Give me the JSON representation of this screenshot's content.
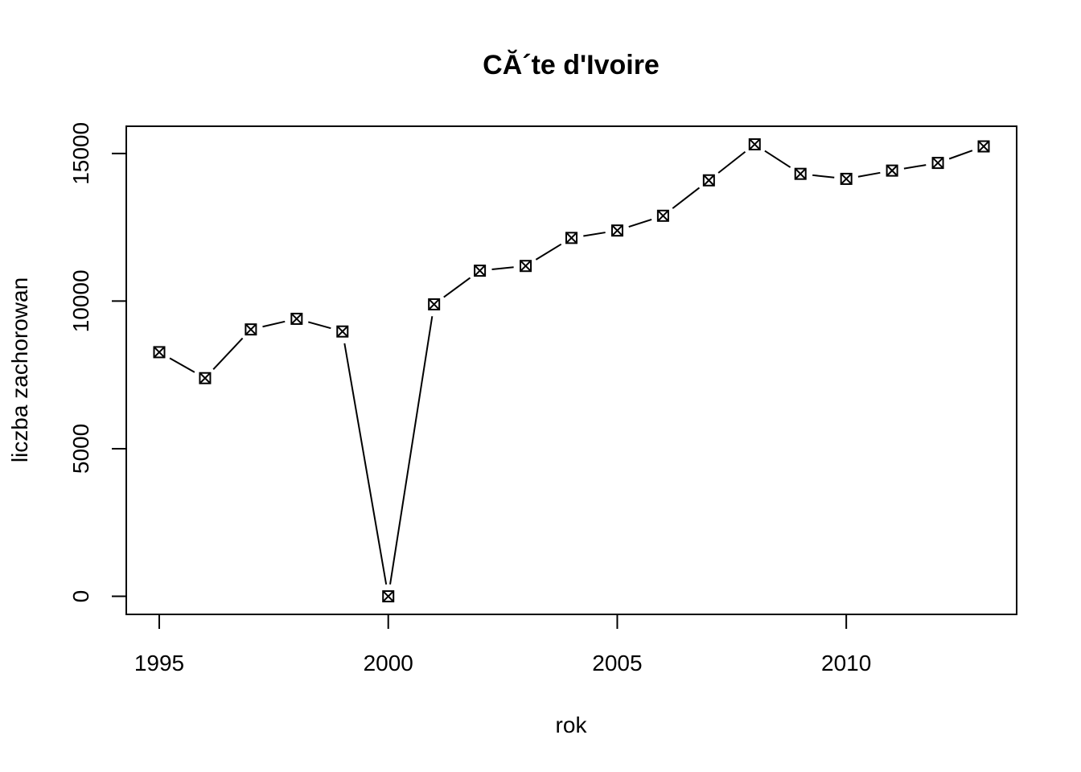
{
  "chart_data": {
    "type": "line",
    "title": "CĂ´te d'Ivoire",
    "xlabel": "rok",
    "ylabel": "liczba zachorowan",
    "x": [
      1995,
      1996,
      1997,
      1998,
      1999,
      2000,
      2001,
      2002,
      2003,
      2004,
      2005,
      2006,
      2007,
      2008,
      2009,
      2010,
      2011,
      2012,
      2013
    ],
    "series": [
      {
        "values": [
          8270,
          7390,
          9040,
          9400,
          8970,
          0,
          9890,
          11030,
          11190,
          12140,
          12390,
          12890,
          14090,
          15310,
          14310,
          14140,
          14420,
          14680,
          15240
        ]
      }
    ],
    "xlim": [
      1994.28,
      2013.72
    ],
    "ylim": [
      -612,
      15922
    ],
    "xticks": [
      1995,
      2000,
      2005,
      2010
    ],
    "yticks": [
      0,
      5000,
      10000,
      15000
    ],
    "marker": "square-x",
    "line_style": "both",
    "grid": false
  }
}
